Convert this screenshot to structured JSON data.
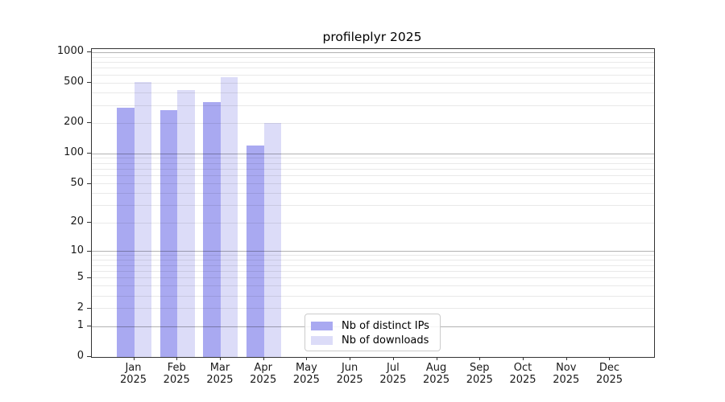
{
  "chart_data": {
    "type": "bar",
    "title": "profileplyr 2025",
    "categories": [
      "Jan 2025",
      "Feb 2025",
      "Mar 2025",
      "Apr 2025",
      "May 2025",
      "Jun 2025",
      "Jul 2025",
      "Aug 2025",
      "Sep 2025",
      "Oct 2025",
      "Nov 2025",
      "Dec 2025"
    ],
    "series": [
      {
        "name": "Nb of distinct IPs",
        "color": "#a9a9f1",
        "values": [
          285,
          268,
          322,
          121,
          null,
          null,
          null,
          null,
          null,
          null,
          null,
          null
        ]
      },
      {
        "name": "Nb of downloads",
        "color": "#dcdcf8",
        "values": [
          511,
          425,
          570,
          200,
          null,
          null,
          null,
          null,
          null,
          null,
          null,
          null
        ]
      }
    ],
    "y_ticks": [
      0,
      1,
      2,
      5,
      10,
      20,
      50,
      100,
      200,
      500,
      1000
    ],
    "major_gridlines": [
      1,
      10,
      100,
      1000
    ],
    "minor_gridlines": [
      2,
      3,
      4,
      5,
      6,
      7,
      8,
      9,
      20,
      30,
      40,
      50,
      60,
      70,
      80,
      90,
      200,
      300,
      400,
      500,
      600,
      700,
      800,
      900
    ],
    "scale": "log10(1+y)",
    "ylim": [
      0,
      1085
    ],
    "xlabel": "",
    "ylabel": "",
    "grid": true,
    "legend": {
      "position": "lower-center"
    },
    "colors": {
      "axis": "#333333",
      "major_grid": "rgba(0,0,0,0.30)",
      "minor_grid": "rgba(0,0,0,0.085)",
      "background": "#ffffff",
      "text": "#1a1a1a"
    }
  }
}
